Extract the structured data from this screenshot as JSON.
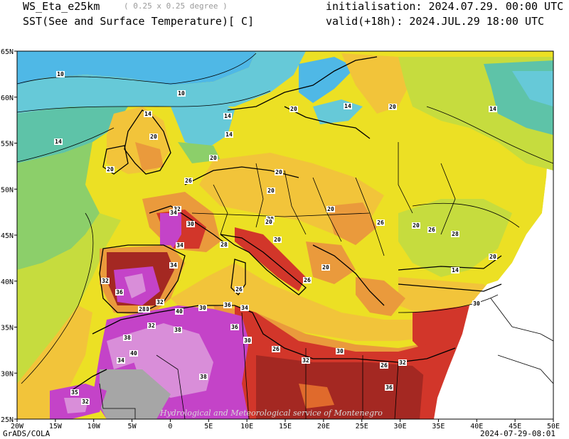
{
  "header": {
    "model": "WS_Eta_e25km",
    "resolution": "( 0.25 x 0.25 degree )",
    "field": "SST(See and Surface Temperature)[ C]",
    "init": "initialisation: 2024.07.29. 00:00 UTC",
    "valid": "valid(+18h): 2024.JUL.29 18:00 UTC"
  },
  "axes": {
    "x_ticks": [
      "20W",
      "15W",
      "10W",
      "5W",
      "0",
      "5E",
      "10E",
      "15E",
      "20E",
      "25E",
      "30E",
      "35E",
      "40E",
      "45E",
      "50E"
    ],
    "y_ticks": [
      "65N",
      "60N",
      "55N",
      "50N",
      "45N",
      "40N",
      "35N",
      "30N",
      "25N"
    ]
  },
  "contour_labels": [
    "10",
    "10",
    "14",
    "14",
    "14",
    "20",
    "20",
    "14",
    "14",
    "20",
    "20",
    "14",
    "20",
    "20",
    "20",
    "26",
    "20",
    "32",
    "34",
    "30",
    "34",
    "28",
    "20",
    "20",
    "26",
    "20",
    "26",
    "28",
    "20",
    "20",
    "14",
    "20",
    "30",
    "26",
    "32",
    "34",
    "36",
    "30",
    "28",
    "32",
    "40",
    "30",
    "36",
    "34",
    "32",
    "38",
    "38",
    "36",
    "34",
    "40",
    "34",
    "35",
    "32",
    "30",
    "26",
    "32",
    "30",
    "26",
    "32",
    "38",
    "36",
    "26"
  ],
  "watermark": "Hydrological and Meteorological service of Montenegro",
  "footer": {
    "left": "GrADS/COLA",
    "right": "2024-07-29-08:01"
  },
  "colors": {
    "cold_blue": "#4fb8e6",
    "cyan": "#66c9d8",
    "teal": "#5ec3a8",
    "green": "#8ccf6a",
    "yellow_green": "#c6dc3e",
    "yellow": "#ece024",
    "gold": "#f2c43a",
    "orange": "#ea9a3c",
    "dark_orange": "#e06a2c",
    "red": "#d2362a",
    "dark_red": "#a42822",
    "magenta": "#c443c8",
    "light_magenta": "#d98ed9",
    "gray": "#a6a6a6"
  }
}
